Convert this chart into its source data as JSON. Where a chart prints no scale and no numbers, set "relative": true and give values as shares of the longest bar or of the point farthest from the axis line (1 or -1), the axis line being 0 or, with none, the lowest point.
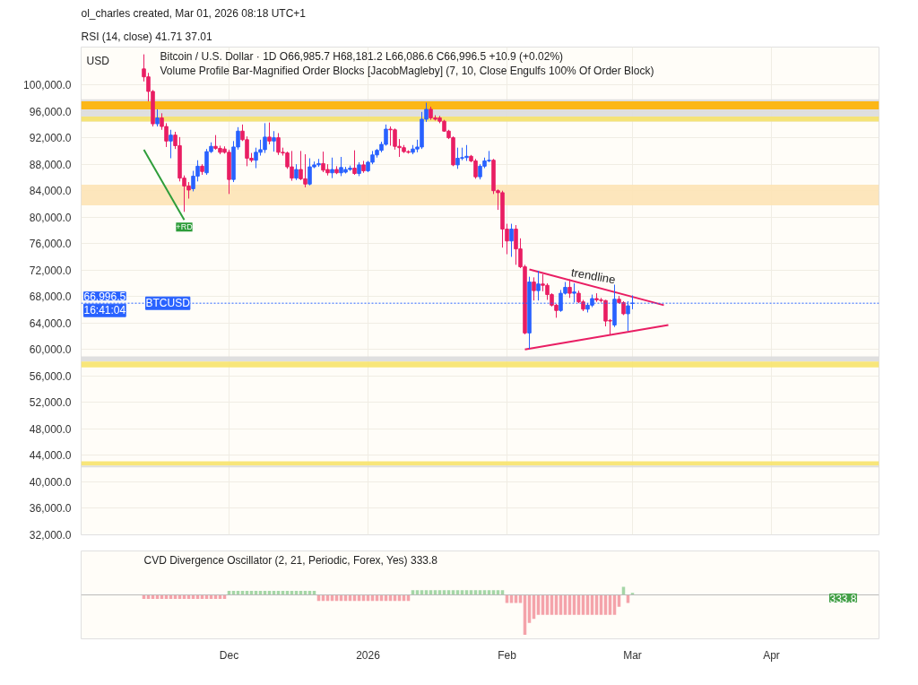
{
  "chart_data": [
    {
      "type": "candlestick",
      "title": "Bitcoin / U.S. Dollar · 1D  O66,985.7  H68,181.2  L66,086.6  C66,996.5  +10.9 (+0.02%)",
      "subtitle": "Volume Profile Bar-Magnified Order Blocks [JacobMagleby] (7, 10, Close Engulfs 100% Of Order Block)",
      "ylabel": "USD",
      "annotations": [
        "ol_charles created, Mar 01, 2026 08:18 UTC+1",
        "RSI (14, close)  41.71  37.01",
        {
          "text": "66,996.5",
          "y": 66996.5
        },
        {
          "text": "16:41:04",
          "y": 66996.5
        },
        {
          "text": "+RD",
          "x": "2025-11-21",
          "y": 79600
        },
        {
          "text": "trendline",
          "x": "2026-02-20",
          "y": 69580
        }
      ],
      "x": [
        "2025-11-12",
        "2025-11-13",
        "2025-11-14",
        "2025-11-15",
        "2025-11-16",
        "2025-11-17",
        "2025-11-18",
        "2025-11-19",
        "2025-11-20",
        "2025-11-21",
        "2025-11-22",
        "2025-11-23",
        "2025-11-24",
        "2025-11-25",
        "2025-11-26",
        "2025-11-27",
        "2025-11-28",
        "2025-11-29",
        "2025-11-30",
        "2025-12-01",
        "2025-12-02",
        "2025-12-03",
        "2025-12-04",
        "2025-12-05",
        "2025-12-06",
        "2025-12-07",
        "2025-12-08",
        "2025-12-09",
        "2025-12-10",
        "2025-12-11",
        "2025-12-12",
        "2025-12-13",
        "2025-12-14",
        "2025-12-15",
        "2025-12-16",
        "2025-12-17",
        "2025-12-18",
        "2025-12-19",
        "2025-12-20",
        "2025-12-21",
        "2025-12-22",
        "2025-12-23",
        "2025-12-24",
        "2025-12-25",
        "2025-12-26",
        "2025-12-27",
        "2025-12-28",
        "2025-12-29",
        "2025-12-30",
        "2025-12-31",
        "2026-01-01",
        "2026-01-02",
        "2026-01-03",
        "2026-01-04",
        "2026-01-05",
        "2026-01-06",
        "2026-01-07",
        "2026-01-08",
        "2026-01-09",
        "2026-01-10",
        "2026-01-11",
        "2026-01-12",
        "2026-01-13",
        "2026-01-14",
        "2026-01-15",
        "2026-01-16",
        "2026-01-17",
        "2026-01-18",
        "2026-01-19",
        "2026-01-20",
        "2026-01-21",
        "2026-01-22",
        "2026-01-23",
        "2026-01-24",
        "2026-01-25",
        "2026-01-26",
        "2026-01-27",
        "2026-01-28",
        "2026-01-29",
        "2026-01-30",
        "2026-01-31",
        "2026-02-01",
        "2026-02-02",
        "2026-02-03",
        "2026-02-04",
        "2026-02-05",
        "2026-02-06",
        "2026-02-07",
        "2026-02-08",
        "2026-02-09",
        "2026-02-10",
        "2026-02-11",
        "2026-02-12",
        "2026-02-13",
        "2026-02-14",
        "2026-02-15",
        "2026-02-16",
        "2026-02-17",
        "2026-02-18",
        "2026-02-19",
        "2026-02-20",
        "2026-02-21",
        "2026-02-22",
        "2026-02-23",
        "2026-02-24",
        "2026-02-25",
        "2026-02-26",
        "2026-02-27",
        "2026-02-28",
        "2026-03-01"
      ],
      "ohlc": [
        [
          102400,
          104600,
          100500,
          101200
        ],
        [
          101200,
          101800,
          97500,
          99000
        ],
        [
          99000,
          99200,
          93700,
          94100
        ],
        [
          94100,
          96300,
          93700,
          95000
        ],
        [
          95000,
          95700,
          93200,
          93700
        ],
        [
          93700,
          94200,
          90600,
          91500
        ],
        [
          91500,
          93200,
          88900,
          92400
        ],
        [
          92400,
          92900,
          90300,
          90800
        ],
        [
          90800,
          92100,
          85400,
          85900
        ],
        [
          85900,
          86300,
          80800,
          84700
        ],
        [
          84700,
          85300,
          82800,
          84100
        ],
        [
          84300,
          87000,
          83900,
          86200
        ],
        [
          86200,
          88600,
          85400,
          87700
        ],
        [
          87700,
          88000,
          86400,
          86900
        ],
        [
          86700,
          90300,
          86400,
          89900
        ],
        [
          89900,
          91300,
          89700,
          90700
        ],
        [
          90700,
          92400,
          90200,
          90400
        ],
        [
          90400,
          90800,
          89500,
          89800
        ],
        [
          90300,
          90700,
          89600,
          89800
        ],
        [
          89800,
          90200,
          83500,
          85700
        ],
        [
          85700,
          91500,
          85300,
          90600
        ],
        [
          90600,
          93600,
          90200,
          93000
        ],
        [
          93000,
          94000,
          91500,
          91700
        ],
        [
          91700,
          92200,
          87700,
          88900
        ],
        [
          88900,
          89700,
          88300,
          88600
        ],
        [
          88600,
          90500,
          87400,
          89800
        ],
        [
          89800,
          91700,
          89300,
          90200
        ],
        [
          90200,
          94200,
          89700,
          92100
        ],
        [
          92100,
          94300,
          91000,
          91500
        ],
        [
          91500,
          93000,
          89900,
          92000
        ],
        [
          92000,
          92700,
          89400,
          89800
        ],
        [
          89800,
          90500,
          89300,
          89700
        ],
        [
          89700,
          89900,
          87300,
          87600
        ],
        [
          87600,
          90000,
          85500,
          85900
        ],
        [
          85900,
          88000,
          85600,
          87200
        ],
        [
          87200,
          90000,
          85600,
          85800
        ],
        [
          85800,
          89500,
          84500,
          85000
        ],
        [
          85000,
          88900,
          84800,
          87600
        ],
        [
          87600,
          88400,
          87400,
          87900
        ],
        [
          87900,
          88800,
          87600,
          88100
        ],
        [
          88100,
          89900,
          86800,
          87100
        ],
        [
          87200,
          88000,
          86300,
          86700
        ],
        [
          86700,
          89000,
          85900,
          87200
        ],
        [
          87200,
          87700,
          86500,
          86700
        ],
        [
          86700,
          89100,
          86200,
          87500
        ],
        [
          86800,
          87600,
          86600,
          87200
        ],
        [
          87200,
          87800,
          87000,
          87400
        ],
        [
          87400,
          90100,
          86400,
          86600
        ],
        [
          86600,
          88300,
          86200,
          87900
        ],
        [
          87900,
          88500,
          86700,
          87000
        ],
        [
          87000,
          88500,
          86800,
          88300
        ],
        [
          88300,
          90000,
          88000,
          89400
        ],
        [
          89400,
          90300,
          89000,
          90100
        ],
        [
          90100,
          91400,
          89800,
          91000
        ],
        [
          91000,
          94000,
          90800,
          93300
        ],
        [
          93300,
          93700,
          90800,
          93200
        ],
        [
          93200,
          93400,
          90200,
          90700
        ],
        [
          90700,
          91800,
          89100,
          90500
        ],
        [
          90500,
          90900,
          89700,
          89900
        ],
        [
          89900,
          90100,
          89600,
          89800
        ],
        [
          89800,
          90900,
          89500,
          90300
        ],
        [
          90300,
          91700,
          89800,
          90600
        ],
        [
          90600,
          95900,
          90300,
          94800
        ],
        [
          94800,
          97300,
          94400,
          96300
        ],
        [
          96300,
          96700,
          94700,
          95000
        ],
        [
          95000,
          95400,
          94600,
          94800
        ],
        [
          95000,
          95300,
          94200,
          94500
        ],
        [
          94500,
          94700,
          92900,
          93000
        ],
        [
          93000,
          93200,
          91800,
          92000
        ],
        [
          92000,
          92200,
          87700,
          87900
        ],
        [
          87900,
          90500,
          87300,
          88900
        ],
        [
          88900,
          90500,
          88600,
          89000
        ],
        [
          89000,
          90900,
          88500,
          89200
        ],
        [
          89200,
          89400,
          88300,
          88500
        ],
        [
          88500,
          88800,
          85800,
          86100
        ],
        [
          86100,
          88000,
          85700,
          87700
        ],
        [
          87700,
          89000,
          87400,
          88500
        ],
        [
          88500,
          90000,
          88300,
          88600
        ],
        [
          88600,
          88800,
          83500,
          84000
        ],
        [
          84000,
          84200,
          81100,
          83700
        ],
        [
          83700,
          84000,
          75400,
          78200
        ],
        [
          78200,
          79000,
          74400,
          76400
        ],
        [
          76400,
          79000,
          74000,
          78200
        ],
        [
          78200,
          78800,
          72800,
          75200
        ],
        [
          75200,
          76800,
          72300,
          72500
        ],
        [
          72500,
          72800,
          62300,
          62500
        ],
        [
          62500,
          71000,
          60100,
          70200
        ],
        [
          70200,
          70900,
          67400,
          68900
        ],
        [
          68900,
          71900,
          67400,
          69900
        ],
        [
          69900,
          71400,
          68800,
          69700
        ],
        [
          69700,
          70000,
          67500,
          68300
        ],
        [
          68300,
          68500,
          66500,
          66700
        ],
        [
          66700,
          66900,
          64800,
          65900
        ],
        [
          65900,
          69000,
          65700,
          68500
        ],
        [
          68500,
          70200,
          68300,
          69400
        ],
        [
          69400,
          70600,
          67800,
          68500
        ],
        [
          68500,
          70000,
          67100,
          68700
        ],
        [
          68500,
          68900,
          67000,
          67200
        ],
        [
          67200,
          67500,
          65800,
          66100
        ],
        [
          66100,
          67000,
          65600,
          66700
        ],
        [
          66700,
          68300,
          66400,
          67700
        ],
        [
          67700,
          68500,
          67200,
          67500
        ],
        [
          67500,
          67800,
          67100,
          67400
        ],
        [
          67400,
          67500,
          63500,
          64300
        ],
        [
          64400,
          64600,
          62200,
          64300
        ],
        [
          63700,
          69800,
          63400,
          67600
        ],
        [
          67600,
          68100,
          66900,
          67100
        ],
        [
          67100,
          67300,
          65200,
          65400
        ],
        [
          65400,
          67300,
          62800,
          66600
        ],
        [
          66985.7,
          68181.2,
          66086.6,
          66996.5
        ]
      ],
      "colors": [
        "#e91e63",
        "#e91e63",
        "#e91e63",
        "#2962ff",
        "#e91e63",
        "#e91e63",
        "#2962ff",
        "#e91e63",
        "#e91e63",
        "#e91e63",
        "#e91e63",
        "#2962ff",
        "#2962ff",
        "#e91e63",
        "#2962ff",
        "#2962ff",
        "#e91e63",
        "#e91e63",
        "#e91e63",
        "#e91e63",
        "#2962ff",
        "#2962ff",
        "#e91e63",
        "#e91e63",
        "#e91e63",
        "#2962ff",
        "#2962ff",
        "#2962ff",
        "#e91e63",
        "#2962ff",
        "#e91e63",
        "#e91e63",
        "#e91e63",
        "#e91e63",
        "#2962ff",
        "#e91e63",
        "#e91e63",
        "#2962ff",
        "#2962ff",
        "#2962ff",
        "#e91e63",
        "#e91e63",
        "#2962ff",
        "#e91e63",
        "#2962ff",
        "#2962ff",
        "#2962ff",
        "#e91e63",
        "#2962ff",
        "#e91e63",
        "#2962ff",
        "#2962ff",
        "#2962ff",
        "#2962ff",
        "#2962ff",
        "#e91e63",
        "#e91e63",
        "#e91e63",
        "#e91e63",
        "#e91e63",
        "#2962ff",
        "#2962ff",
        "#2962ff",
        "#2962ff",
        "#e91e63",
        "#e91e63",
        "#e91e63",
        "#e91e63",
        "#e91e63",
        "#e91e63",
        "#2962ff",
        "#2962ff",
        "#2962ff",
        "#e91e63",
        "#e91e63",
        "#2962ff",
        "#2962ff",
        "#2962ff",
        "#e91e63",
        "#e91e63",
        "#e91e63",
        "#e91e63",
        "#2962ff",
        "#e91e63",
        "#e91e63",
        "#e91e63",
        "#2962ff",
        "#e91e63",
        "#2962ff",
        "#e91e63",
        "#e91e63",
        "#e91e63",
        "#e91e63",
        "#2962ff",
        "#2962ff",
        "#e91e63",
        "#2962ff",
        "#e91e63",
        "#e91e63",
        "#2962ff",
        "#2962ff",
        "#e91e63",
        "#e91e63",
        "#e91e63",
        "#e91e63",
        "#2962ff",
        "#e91e63",
        "#e91e63",
        "#2962ff",
        "#2962ff"
      ],
      "series": [
        {
          "type": "line",
          "color": "#e91e63",
          "x": [
            "2026-02-06",
            "2026-03-08"
          ],
          "values": [
            72100,
            66700
          ]
        },
        {
          "type": "line",
          "color": "#e91e63",
          "x": [
            "2026-02-05",
            "2026-03-09"
          ],
          "values": [
            60000,
            63700
          ]
        },
        {
          "type": "line",
          "color": "#2e9d3a",
          "x": [
            "2025-11-12",
            "2025-11-21"
          ],
          "values": [
            90200,
            79600
          ]
        }
      ],
      "bands": [
        {
          "axis": "y",
          "from": 94450,
          "to": 97800,
          "color": "#dcdcdc"
        },
        {
          "axis": "y",
          "from": 96300,
          "to": 97500,
          "color": "#ffb300"
        },
        {
          "axis": "y",
          "from": 94450,
          "to": 95200,
          "color": "#f7e36b"
        },
        {
          "axis": "y",
          "from": 81800,
          "to": 84900,
          "color": "#fde3b5"
        },
        {
          "axis": "y",
          "from": 58190,
          "to": 58970,
          "color": "#dcdcdc"
        },
        {
          "axis": "y",
          "from": 57290,
          "to": 58190,
          "color": "#f7e36b"
        },
        {
          "axis": "y",
          "from": 42450,
          "to": 43100,
          "color": "#f7e36b"
        },
        {
          "axis": "y",
          "from": 42190,
          "to": 42450,
          "color": "#dcdcdc"
        }
      ],
      "ref_lines": [
        {
          "axis": "y",
          "value": 66996.5,
          "label": "BTCUSD",
          "color": "#2962ff",
          "line_style": "dotted"
        }
      ],
      "xlim": [
        "2025-10-29",
        "2026-04-25"
      ],
      "xticks": [
        {
          "value": "2025-12-01",
          "label": null
        },
        {
          "value": "2026-01-01",
          "label": null
        },
        {
          "value": "2026-02-01",
          "label": null
        },
        {
          "value": "2026-03-01",
          "label": null
        },
        {
          "value": "2026-04-01",
          "label": null
        }
      ],
      "ylim": [
        32000,
        105700
      ],
      "yticks": [
        {
          "value": 32000,
          "label": "32,000.0"
        },
        {
          "value": 36000,
          "label": "36,000.0"
        },
        {
          "value": 40000,
          "label": "40,000.0"
        },
        {
          "value": 44000,
          "label": "44,000.0"
        },
        {
          "value": 48000,
          "label": "48,000.0"
        },
        {
          "value": 52000,
          "label": "52,000.0"
        },
        {
          "value": 56000,
          "label": "56,000.0"
        },
        {
          "value": 60000,
          "label": "60,000.0"
        },
        {
          "value": 64000,
          "label": "64,000.0"
        },
        {
          "value": 68000,
          "label": "68,000.0"
        },
        {
          "value": 72000,
          "label": "72,000.0"
        },
        {
          "value": 76000,
          "label": "76,000.0"
        },
        {
          "value": 80000,
          "label": "80,000.0"
        },
        {
          "value": 84000,
          "label": "84,000.0"
        },
        {
          "value": 88000,
          "label": "88,000.0"
        },
        {
          "value": 92000,
          "label": "92,000.0"
        },
        {
          "value": 96000,
          "label": "96,000.0"
        },
        {
          "value": 100000,
          "label": "100,000.0"
        }
      ],
      "tick_labels": "y",
      "grid": true
    },
    {
      "type": "bar",
      "title": "CVD Divergence Oscillator (2, 21, Periodic, Forex, Yes)  333.8",
      "relative": true,
      "annotations": [
        "333.8"
      ],
      "x": [
        "2025-11-12",
        "2025-11-13",
        "2025-11-14",
        "2025-11-15",
        "2025-11-16",
        "2025-11-17",
        "2025-11-18",
        "2025-11-19",
        "2025-11-20",
        "2025-11-21",
        "2025-11-22",
        "2025-11-23",
        "2025-11-24",
        "2025-11-25",
        "2025-11-26",
        "2025-11-27",
        "2025-11-28",
        "2025-11-29",
        "2025-11-30",
        "2025-12-01",
        "2025-12-02",
        "2025-12-03",
        "2025-12-04",
        "2025-12-05",
        "2025-12-06",
        "2025-12-07",
        "2025-12-08",
        "2025-12-09",
        "2025-12-10",
        "2025-12-11",
        "2025-12-12",
        "2025-12-13",
        "2025-12-14",
        "2025-12-15",
        "2025-12-16",
        "2025-12-17",
        "2025-12-18",
        "2025-12-19",
        "2025-12-20",
        "2025-12-21",
        "2025-12-22",
        "2025-12-23",
        "2025-12-24",
        "2025-12-25",
        "2025-12-26",
        "2025-12-27",
        "2025-12-28",
        "2025-12-29",
        "2025-12-30",
        "2025-12-31",
        "2026-01-01",
        "2026-01-02",
        "2026-01-03",
        "2026-01-04",
        "2026-01-05",
        "2026-01-06",
        "2026-01-07",
        "2026-01-08",
        "2026-01-09",
        "2026-01-10",
        "2026-01-11",
        "2026-01-12",
        "2026-01-13",
        "2026-01-14",
        "2026-01-15",
        "2026-01-16",
        "2026-01-17",
        "2026-01-18",
        "2026-01-19",
        "2026-01-20",
        "2026-01-21",
        "2026-01-22",
        "2026-01-23",
        "2026-01-24",
        "2026-01-25",
        "2026-01-26",
        "2026-01-27",
        "2026-01-28",
        "2026-01-29",
        "2026-01-30",
        "2026-01-31",
        "2026-02-01",
        "2026-02-02",
        "2026-02-03",
        "2026-02-04",
        "2026-02-05",
        "2026-02-06",
        "2026-02-07",
        "2026-02-08",
        "2026-02-09",
        "2026-02-10",
        "2026-02-11",
        "2026-02-12",
        "2026-02-13",
        "2026-02-14",
        "2026-02-15",
        "2026-02-16",
        "2026-02-17",
        "2026-02-18",
        "2026-02-19",
        "2026-02-20",
        "2026-02-21",
        "2026-02-22",
        "2026-02-23",
        "2026-02-24",
        "2026-02-25",
        "2026-02-26",
        "2026-02-27",
        "2026-02-28",
        "2026-03-01"
      ],
      "values": [
        -0.1,
        -0.1,
        -0.1,
        -0.1,
        -0.1,
        -0.1,
        -0.1,
        -0.1,
        -0.1,
        -0.1,
        -0.1,
        -0.1,
        -0.1,
        -0.1,
        -0.1,
        -0.1,
        -0.1,
        -0.1,
        -0.1,
        0.1,
        0.1,
        0.1,
        0.1,
        0.1,
        0.1,
        0.1,
        0.1,
        0.1,
        0.1,
        0.1,
        0.1,
        0.1,
        0.1,
        0.1,
        0.1,
        0.1,
        0.1,
        0.1,
        0.1,
        -0.15,
        -0.15,
        -0.15,
        -0.15,
        -0.15,
        -0.15,
        -0.15,
        -0.15,
        -0.15,
        -0.15,
        -0.15,
        -0.15,
        -0.15,
        -0.15,
        -0.15,
        -0.15,
        -0.15,
        -0.15,
        -0.15,
        -0.15,
        -0.15,
        0.12,
        0.12,
        0.12,
        0.12,
        0.12,
        0.12,
        0.12,
        0.12,
        0.12,
        0.12,
        0.12,
        0.12,
        0.12,
        0.12,
        0.12,
        0.12,
        0.12,
        0.12,
        0.12,
        0.12,
        0.12,
        -0.2,
        -0.2,
        -0.2,
        -0.2,
        -1,
        -0.7,
        -0.6,
        -0.5,
        -0.5,
        -0.5,
        -0.5,
        -0.5,
        -0.5,
        -0.5,
        -0.5,
        -0.5,
        -0.5,
        -0.5,
        -0.5,
        -0.5,
        -0.5,
        -0.5,
        -0.5,
        -0.5,
        -0.5,
        -0.3,
        0.2,
        -0.2,
        0.05
      ],
      "colors": [
        "#f4a3aa",
        "#f4a3aa",
        "#f4a3aa",
        "#f4a3aa",
        "#f4a3aa",
        "#f4a3aa",
        "#f4a3aa",
        "#f4a3aa",
        "#f4a3aa",
        "#f4a3aa",
        "#f4a3aa",
        "#f4a3aa",
        "#f4a3aa",
        "#f4a3aa",
        "#f4a3aa",
        "#f4a3aa",
        "#f4a3aa",
        "#f4a3aa",
        "#f4a3aa",
        "#a5d6a7",
        "#a5d6a7",
        "#a5d6a7",
        "#a5d6a7",
        "#a5d6a7",
        "#a5d6a7",
        "#a5d6a7",
        "#a5d6a7",
        "#a5d6a7",
        "#a5d6a7",
        "#a5d6a7",
        "#a5d6a7",
        "#a5d6a7",
        "#a5d6a7",
        "#a5d6a7",
        "#a5d6a7",
        "#a5d6a7",
        "#a5d6a7",
        "#a5d6a7",
        "#a5d6a7",
        "#f4a3aa",
        "#f4a3aa",
        "#f4a3aa",
        "#f4a3aa",
        "#f4a3aa",
        "#f4a3aa",
        "#f4a3aa",
        "#f4a3aa",
        "#f4a3aa",
        "#f4a3aa",
        "#f4a3aa",
        "#f4a3aa",
        "#f4a3aa",
        "#f4a3aa",
        "#f4a3aa",
        "#f4a3aa",
        "#f4a3aa",
        "#f4a3aa",
        "#f4a3aa",
        "#f4a3aa",
        "#f4a3aa",
        "#a5d6a7",
        "#a5d6a7",
        "#a5d6a7",
        "#a5d6a7",
        "#a5d6a7",
        "#a5d6a7",
        "#a5d6a7",
        "#a5d6a7",
        "#a5d6a7",
        "#a5d6a7",
        "#a5d6a7",
        "#a5d6a7",
        "#a5d6a7",
        "#a5d6a7",
        "#a5d6a7",
        "#a5d6a7",
        "#a5d6a7",
        "#a5d6a7",
        "#a5d6a7",
        "#a5d6a7",
        "#a5d6a7",
        "#f4a3aa",
        "#f4a3aa",
        "#f4a3aa",
        "#f4a3aa",
        "#f4a3aa",
        "#f4a3aa",
        "#f4a3aa",
        "#f4a3aa",
        "#f4a3aa",
        "#f4a3aa",
        "#f4a3aa",
        "#f4a3aa",
        "#f4a3aa",
        "#f4a3aa",
        "#f4a3aa",
        "#f4a3aa",
        "#f4a3aa",
        "#f4a3aa",
        "#f4a3aa",
        "#f4a3aa",
        "#f4a3aa",
        "#f4a3aa",
        "#f4a3aa",
        "#f4a3aa",
        "#f4a3aa",
        "#f4a3aa",
        "#a5d6a7",
        "#f4a3aa",
        "#a5d6a7"
      ],
      "xlim": [
        "2025-10-29",
        "2026-04-25"
      ],
      "xticks": [
        {
          "value": "2025-12-01",
          "label": "Dec"
        },
        {
          "value": "2026-01-01",
          "label": "2026"
        },
        {
          "value": "2026-02-01",
          "label": "Feb"
        },
        {
          "value": "2026-03-01",
          "label": "Mar"
        },
        {
          "value": "2026-04-01",
          "label": "Apr"
        }
      ],
      "tick_labels": "x"
    }
  ]
}
